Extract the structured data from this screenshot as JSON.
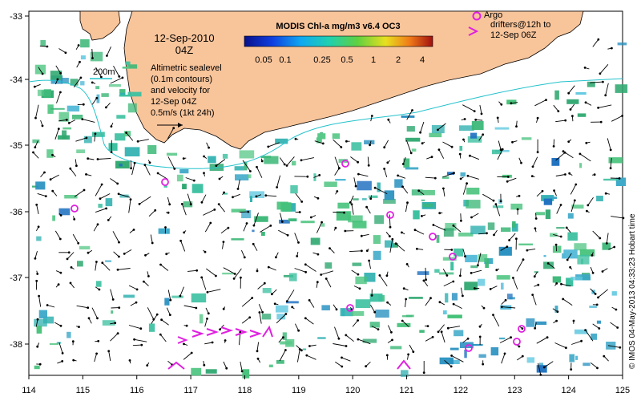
{
  "map": {
    "date": "12-Sep-2010",
    "time": "04Z",
    "scale_label": "200m",
    "legend_lines": [
      "Altimetric sealevel",
      "(0.1m contours)",
      "and velocity for",
      "12-Sep 04Z",
      "0.5m/s (1kt 24h)"
    ],
    "colorbar_title": "MODIS Chl-a mg/m3 v6.4 OC3",
    "colorbar_ticks": [
      "0.05",
      "0.1",
      "0.25",
      "0.5",
      "1",
      "2",
      "4"
    ],
    "argo_lines": [
      "Argo",
      "drifters@12h to",
      "12-Sep 06Z"
    ],
    "credit": "© IMOS 04-May-2013 04:33:23 Hobart time",
    "x_ticks": [
      "114",
      "115",
      "116",
      "117",
      "118",
      "119",
      "120",
      "121",
      "122",
      "123",
      "124",
      "125"
    ],
    "y_ticks": [
      "-33",
      "-34",
      "-35",
      "-36",
      "-37",
      "-38"
    ],
    "colors": {
      "land": "#f8c49a",
      "contour": "#22c2cc",
      "argo": "#e020e0",
      "chl_green": "#3cb878",
      "chl_teal": "#3ca8c8"
    }
  }
}
